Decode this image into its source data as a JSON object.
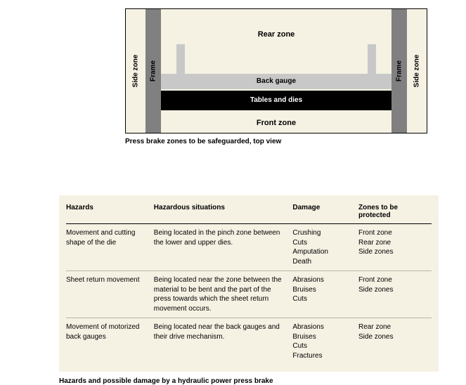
{
  "diagram": {
    "side_zone_left": "Side zone",
    "side_zone_right": "Side zone",
    "frame_left": "Frame",
    "frame_right": "Frame",
    "rear_zone": "Rear zone",
    "back_gauge": "Back gauge",
    "tables_dies": "Tables and dies",
    "front_zone": "Front zone",
    "caption": "Press brake zones to be safeguarded, top view",
    "colors": {
      "panel_bg": "#f5f1e3",
      "frame": "#808080",
      "gauge": "#c8c8c8",
      "tables": "#000000",
      "tables_text": "#ffffff",
      "border": "#000000"
    }
  },
  "table": {
    "headers": {
      "hazards": "Hazards",
      "situations": "Hazardous situations",
      "damage": "Damage",
      "zones": "Zones to be protected"
    },
    "rows": [
      {
        "hazard": "Movement and cutting shape of the die",
        "situation": "Being located in the pinch zone between the lower and upper dies.",
        "damage": [
          "Crushing",
          "Cuts",
          "Amputation",
          "Death"
        ],
        "zones": [
          "Front zone",
          "Rear zone",
          "Side zones"
        ]
      },
      {
        "hazard": "Sheet return movement",
        "situation": "Being located near the zone between the material to be bent and the part of the press towards which the sheet return movement occurs.",
        "damage": [
          "Abrasions",
          "Bruises",
          "Cuts"
        ],
        "zones": [
          "Front zone",
          "Side zones"
        ]
      },
      {
        "hazard": "Movement of motorized back gauges",
        "situation": "Being located near the back gauges and their drive mechanism.",
        "damage": [
          "Abrasions",
          "Bruises",
          "Cuts",
          "Fractures"
        ],
        "zones": [
          "Rear zone",
          "Side zones"
        ]
      }
    ],
    "caption": "Hazards and possible damage by a hydraulic power press brake",
    "colors": {
      "panel_bg": "#f5f1e3",
      "header_rule": "#000000",
      "row_rule": "#b8b4a6",
      "text": "#000000"
    },
    "fontsize": 10
  }
}
